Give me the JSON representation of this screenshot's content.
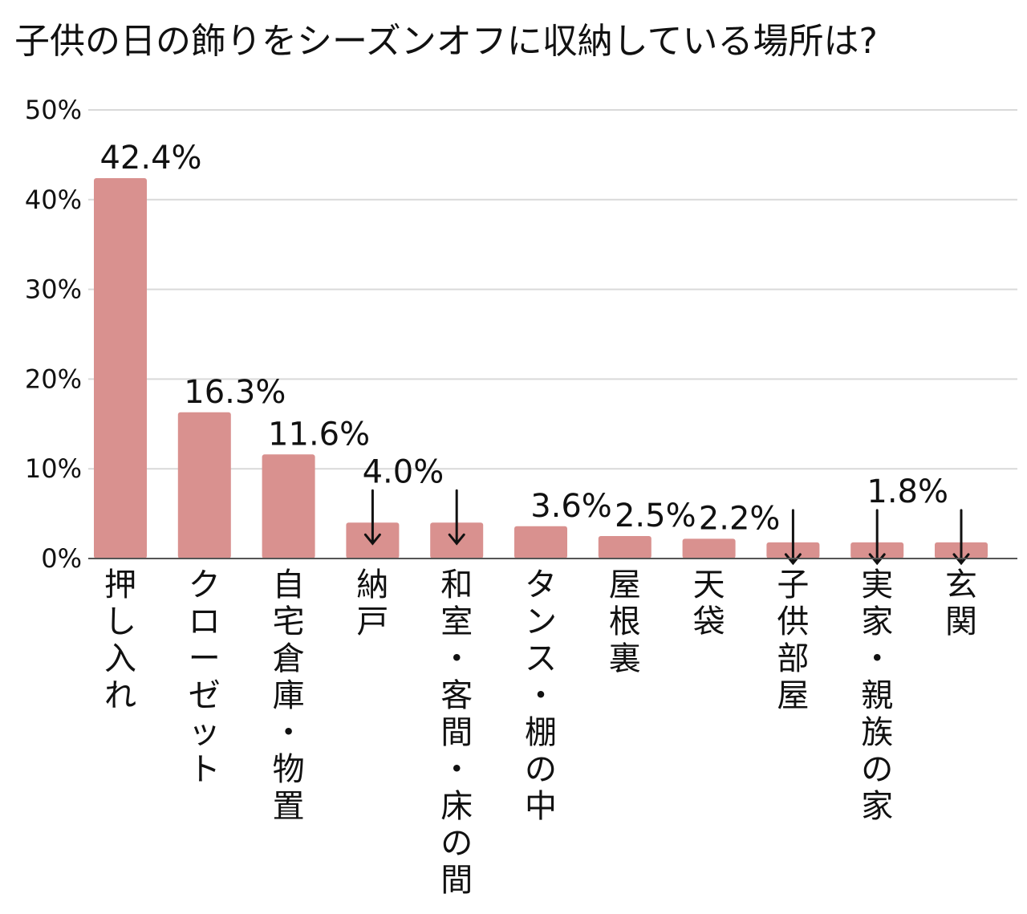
{
  "chart_data": {
    "type": "bar",
    "title": "子供の日の飾りをシーズンオフに収納している場所は?",
    "xlabel": "",
    "ylabel": "",
    "ylim": [
      0,
      50
    ],
    "yticks": [
      0,
      10,
      20,
      30,
      40,
      50
    ],
    "ytick_labels": [
      "0%",
      "10%",
      "20%",
      "30%",
      "40%",
      "50%"
    ],
    "grid": true,
    "bar_color": "#d9918f",
    "categories": [
      "押し入れ",
      "クローゼット",
      "自宅倉庫・物置",
      "納戸",
      "和室・客間・床の間",
      "タンス・棚の中",
      "屋根裏",
      "天袋",
      "子供部屋",
      "実家・親族の家",
      "玄関"
    ],
    "values": [
      42.4,
      16.3,
      11.6,
      4.0,
      4.0,
      3.6,
      2.5,
      2.2,
      1.8,
      1.8,
      1.8
    ],
    "data_labels": [
      "42.4%",
      "16.3%",
      "11.6%",
      "4.0%",
      "",
      "3.6%",
      "2.5%",
      "2.2%",
      "",
      "1.8%",
      ""
    ],
    "arrow_groups": [
      {
        "label_index": 3,
        "bars": [
          3,
          4
        ]
      },
      {
        "label_index": 9,
        "bars": [
          8,
          9,
          10
        ]
      }
    ]
  }
}
